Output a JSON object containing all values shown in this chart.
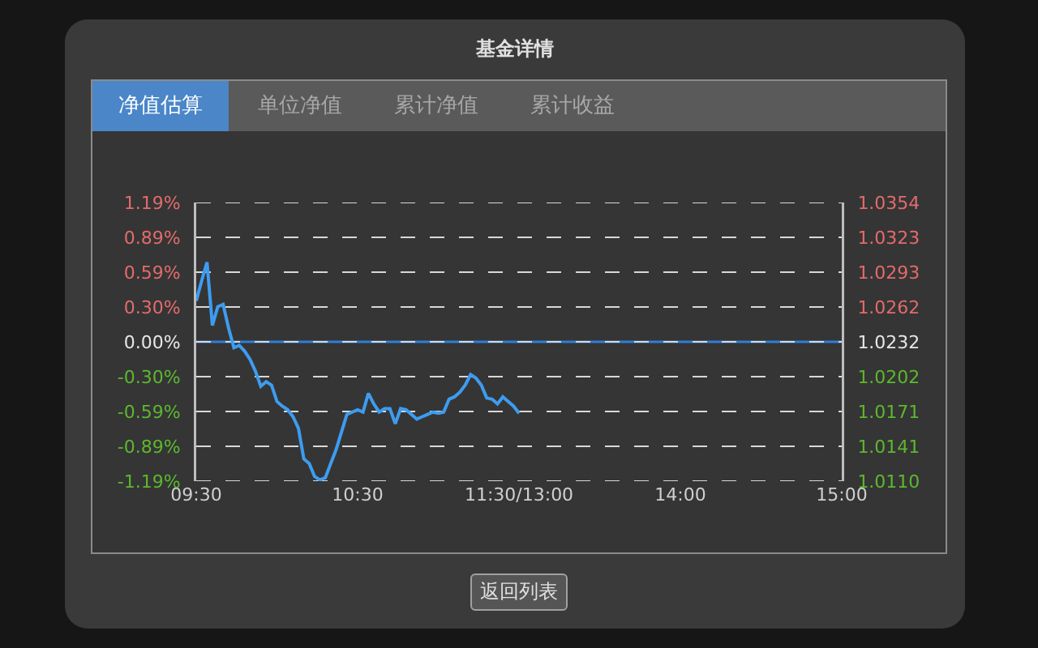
{
  "chart_data": {
    "type": "line",
    "title": "基金详情",
    "annotations": [
      "净值估算",
      "单位净值",
      "累计净值",
      "累计收益",
      "返回列表"
    ],
    "categories": [
      "09:30",
      null,
      null,
      null,
      null,
      null,
      null,
      null,
      null,
      null,
      null,
      null,
      null,
      null,
      null,
      null,
      null,
      null,
      null,
      null,
      null,
      null,
      null,
      null,
      null,
      null,
      null,
      null,
      null,
      null,
      "10:30",
      null,
      null,
      null,
      null,
      null,
      null,
      null,
      null,
      null,
      null,
      null,
      null,
      null,
      null,
      null,
      null,
      null,
      null,
      null,
      null,
      null,
      null,
      null,
      null,
      null,
      null,
      null,
      null,
      null,
      "11:30/13:00",
      null,
      null,
      null,
      null,
      null,
      null,
      null,
      null,
      null,
      null,
      null,
      null,
      null,
      null,
      null,
      null,
      null,
      null,
      null,
      null,
      null,
      null,
      null,
      null,
      null,
      null,
      null,
      null,
      null,
      "14:00",
      null,
      null,
      null,
      null,
      null,
      null,
      null,
      null,
      null,
      null,
      null,
      null,
      null,
      null,
      null,
      null,
      null,
      null,
      null,
      null,
      null,
      null,
      null,
      null,
      null,
      null,
      null,
      null,
      null,
      "15:00"
    ],
    "series": [
      {
        "color": "#3d9cf0",
        "values": [
          0.35,
          0.52,
          0.68,
          0.14,
          0.3,
          0.32,
          0.12,
          -0.05,
          -0.03,
          -0.08,
          -0.15,
          -0.25,
          -0.38,
          -0.34,
          -0.37,
          -0.51,
          -0.55,
          -0.58,
          -0.64,
          -0.74,
          -1.0,
          -1.04,
          -1.15,
          -1.18,
          -1.16,
          -1.04,
          -0.92,
          -0.77,
          -0.62,
          -0.6,
          -0.58,
          -0.6,
          -0.44,
          -0.53,
          -0.6,
          -0.57,
          -0.57,
          -0.7,
          -0.57,
          -0.58,
          -0.62,
          -0.66,
          -0.64,
          -0.62,
          -0.6,
          -0.61,
          -0.6,
          -0.49,
          -0.47,
          -0.43,
          -0.37,
          -0.28,
          -0.31,
          -0.37,
          -0.48,
          -0.49,
          -0.53,
          -0.47,
          -0.51,
          -0.55,
          -0.61,
          null,
          null,
          null,
          null,
          null,
          null,
          null,
          null,
          null,
          null,
          null,
          null,
          null,
          null,
          null,
          null,
          null,
          null,
          null,
          null,
          null,
          null,
          null,
          null,
          null,
          null,
          null,
          null,
          null,
          null,
          null,
          null,
          null,
          null,
          null,
          null,
          null,
          null,
          null,
          null,
          null,
          null,
          null,
          null,
          null,
          null,
          null,
          null,
          null,
          null,
          null,
          null,
          null,
          null,
          null,
          null,
          null,
          null,
          null,
          null
        ]
      }
    ],
    "ylim": [
      -1.19,
      1.19
    ],
    "yticks": [
      {
        "value": -1.19,
        "label": "-1.19%"
      },
      {
        "value": -0.8925,
        "label": "-0.89%"
      },
      {
        "value": -0.595,
        "label": "-0.59%"
      },
      {
        "value": -0.2975,
        "label": "-0.30%"
      },
      {
        "value": 0,
        "label": "0.00%"
      },
      {
        "value": 0.2975,
        "label": "0.30%"
      },
      {
        "value": 0.595,
        "label": "0.59%"
      },
      {
        "value": 0.8925,
        "label": "0.89%"
      },
      {
        "value": 1.19,
        "label": "1.19%"
      }
    ],
    "y2lim": [
      1.011,
      1.0354
    ],
    "y2ticks": [
      {
        "value": 1.011,
        "label": "1.0110"
      },
      {
        "value": 1.01405,
        "label": "1.0141"
      },
      {
        "value": 1.0171,
        "label": "1.0171"
      },
      {
        "value": 1.02015,
        "label": "1.0202"
      },
      1.0232,
      {
        "value": 1.02625,
        "label": "1.0262"
      },
      1.0293,
      {
        "value": 1.03235,
        "label": "1.0323"
      },
      1.0354
    ],
    "grid": "y",
    "ref_lines": [
      {
        "axis": "y",
        "value": 0,
        "color": "#2f7fd6"
      }
    ]
  }
}
